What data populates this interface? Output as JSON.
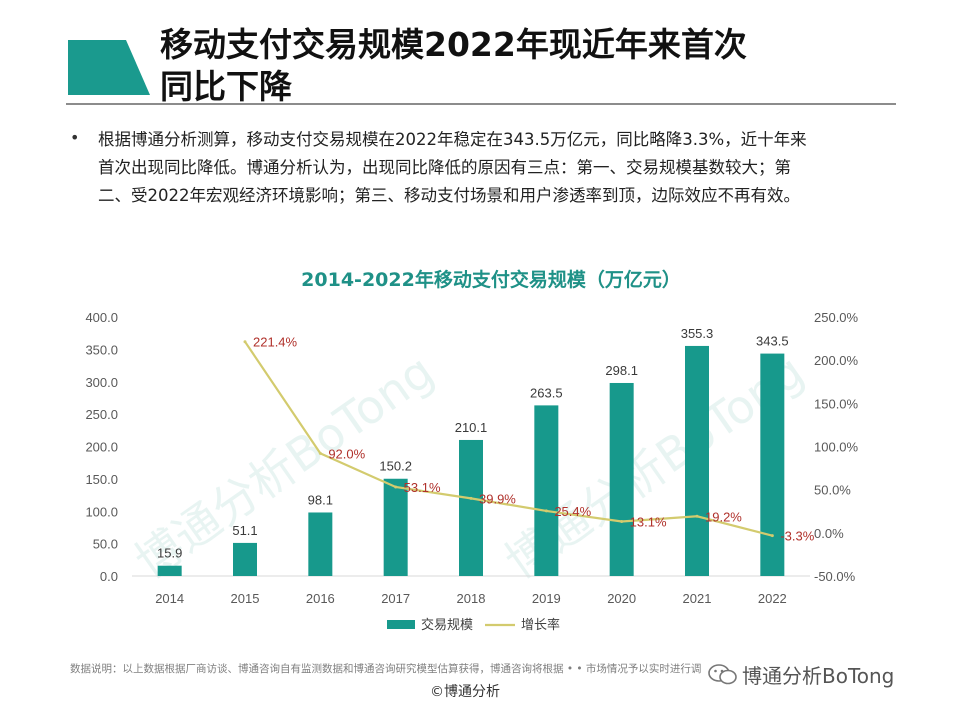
{
  "header": {
    "title_line1": "移动支付交易规模2022年现近年来首次",
    "title_line2": "同比下降",
    "accent_color": "#1a9a8e"
  },
  "bullet": {
    "line1": "根据博通分析测算，移动支付交易规模在2022年稳定在343.5万亿元，同比略降3.3%，近十年来",
    "line2": "首次出现同比降低。博通分析认为，出现同比降低的原因有三点：第一、交易规模基数较大；第",
    "line3": "二、受2022年宏观经济环境影响；第三、移动支付场景和用户渗透率到顶，边际效应不再有效。"
  },
  "chart_data": {
    "type": "bar",
    "title": "2014-2022年移动支付交易规模（万亿元）",
    "categories": [
      "2014",
      "2015",
      "2016",
      "2017",
      "2018",
      "2019",
      "2020",
      "2021",
      "2022"
    ],
    "series": [
      {
        "name": "交易规模",
        "type": "bar",
        "axis": "left",
        "color": "#17998c",
        "values": [
          15.9,
          51.1,
          98.1,
          150.2,
          210.1,
          263.5,
          298.1,
          355.3,
          343.5
        ],
        "labels": [
          "15.9",
          "51.1",
          "98.1",
          "150.2",
          "210.1",
          "263.5",
          "298.1",
          "355.3",
          "343.5"
        ]
      },
      {
        "name": "增长率",
        "type": "line",
        "axis": "right",
        "color": "#d3cb6e",
        "values": [
          null,
          221.4,
          92.0,
          53.1,
          39.9,
          25.4,
          13.1,
          19.2,
          -3.3
        ],
        "labels": [
          "",
          "221.4%",
          "92.0%",
          "53.1%",
          "39.9%",
          "25.4%",
          "13.1%",
          "19.2%",
          "-3.3%"
        ]
      }
    ],
    "y_left": {
      "min": 0,
      "max": 400,
      "ticks": [
        "0.0",
        "50.0",
        "100.0",
        "150.0",
        "200.0",
        "250.0",
        "300.0",
        "350.0",
        "400.0"
      ]
    },
    "y_right": {
      "min": -50,
      "max": 250,
      "ticks": [
        "-50.0%",
        "0.0%",
        "50.0%",
        "100.0%",
        "150.0%",
        "200.0%",
        "250.0%"
      ]
    },
    "legend": [
      "交易规模",
      "增长率"
    ],
    "legend_position": "bottom",
    "watermark": "博通分析BoTong"
  },
  "footer": {
    "note": "数据说明：以上数据根据厂商访谈、博通咨询自有监测数据和博通咨询研究模型估算获得，博通咨询将根据 • • 市场情况予以实时进行调",
    "copyright": "©博通分析",
    "wechat_label": "博通分析BoTong"
  }
}
